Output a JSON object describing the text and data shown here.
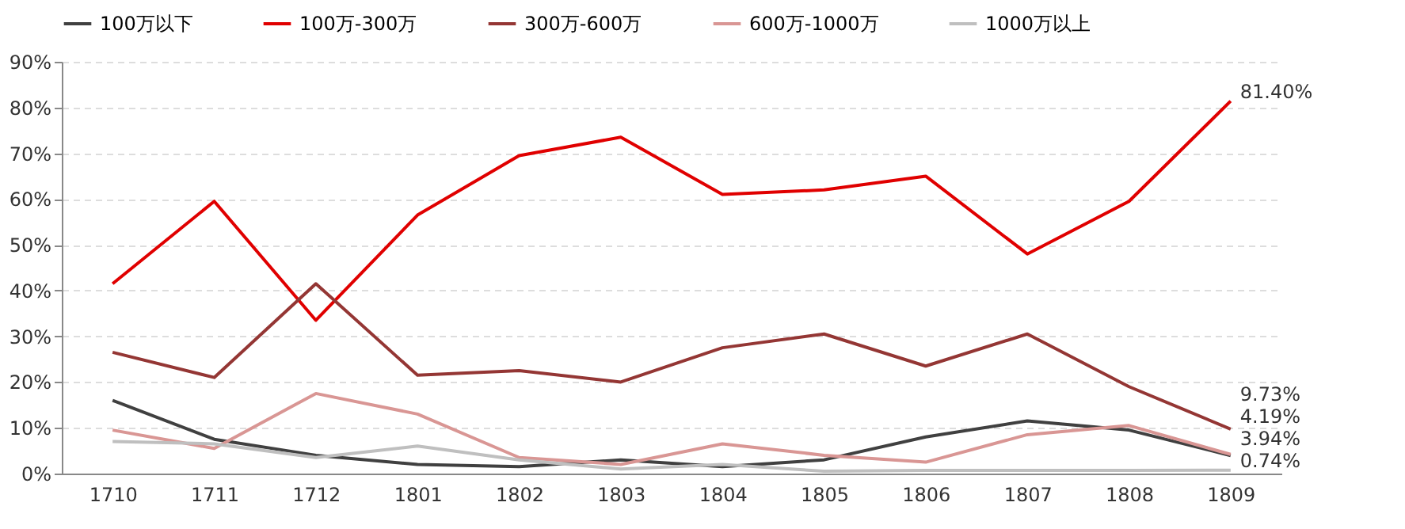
{
  "chart_data": {
    "type": "line",
    "categories": [
      "1710",
      "1711",
      "1712",
      "1801",
      "1802",
      "1803",
      "1804",
      "1805",
      "1806",
      "1807",
      "1808",
      "1809"
    ],
    "series": [
      {
        "name": "100万以下",
        "color": "#404040",
        "values": [
          16,
          7.5,
          4,
          2,
          1.5,
          3,
          1.5,
          3,
          8,
          11.5,
          9.5,
          3.94
        ],
        "value_labels": [
          null,
          null,
          null,
          null,
          null,
          null,
          null,
          null,
          null,
          null,
          null,
          "3.94%"
        ]
      },
      {
        "name": "100万-300万",
        "color": "#e00000",
        "values": [
          41.5,
          59.5,
          33.5,
          56.5,
          69.5,
          73.5,
          61,
          62,
          65,
          48,
          59.5,
          81.4
        ],
        "value_labels": [
          null,
          null,
          null,
          null,
          null,
          null,
          null,
          null,
          null,
          null,
          null,
          "81.40%"
        ]
      },
      {
        "name": "300万-600万",
        "color": "#943634",
        "values": [
          26.5,
          21,
          41.5,
          21.5,
          22.5,
          20,
          27.5,
          30.5,
          23.5,
          30.5,
          19,
          9.73
        ],
        "value_labels": [
          null,
          null,
          null,
          null,
          null,
          null,
          null,
          null,
          null,
          null,
          null,
          "9.73%"
        ]
      },
      {
        "name": "600万-1000万",
        "color": "#d99694",
        "values": [
          9.5,
          5.5,
          17.5,
          13,
          3.5,
          2,
          6.5,
          4,
          2.5,
          8.5,
          10.5,
          4.19
        ],
        "value_labels": [
          null,
          null,
          null,
          null,
          null,
          null,
          null,
          null,
          null,
          null,
          null,
          "4.19%"
        ]
      },
      {
        "name": "1000万以上",
        "color": "#bfbfbf",
        "values": [
          7,
          6.5,
          3.5,
          6,
          3,
          1,
          2,
          0.5,
          0.7,
          0.7,
          0.7,
          0.74
        ],
        "value_labels": [
          null,
          null,
          null,
          null,
          null,
          null,
          null,
          null,
          null,
          null,
          null,
          "0.74%"
        ]
      }
    ],
    "ylim": [
      0,
      90
    ],
    "yticks": [
      {
        "value": 0,
        "label": "0%"
      },
      {
        "value": 10,
        "label": "10%"
      },
      {
        "value": 20,
        "label": "20%"
      },
      {
        "value": 30,
        "label": "30%"
      },
      {
        "value": 40,
        "label": "40%"
      },
      {
        "value": 50,
        "label": "50%"
      },
      {
        "value": 60,
        "label": "60%"
      },
      {
        "value": 70,
        "label": "70%"
      },
      {
        "value": 80,
        "label": "80%"
      },
      {
        "value": 90,
        "label": "90%"
      }
    ],
    "grid": "y",
    "legend": "top",
    "marker": "none",
    "line_style": "solid"
  }
}
